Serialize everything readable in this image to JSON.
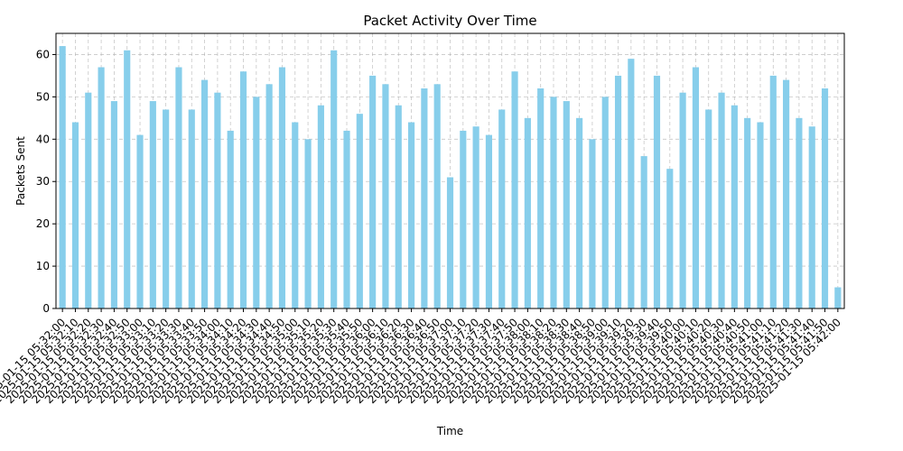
{
  "chart_data": {
    "type": "bar",
    "title": "Packet Activity Over Time",
    "xlabel": "Time",
    "ylabel": "Packets Sent",
    "ylim": [
      0,
      65
    ],
    "yticks": [
      0,
      10,
      20,
      30,
      40,
      50,
      60
    ],
    "grid": true,
    "bar_color": "#87ceeb",
    "categories": [
      "2025-01-15 05:32:00",
      "2025-01-15 05:32:10",
      "2025-01-15 05:32:20",
      "2025-01-15 05:32:30",
      "2025-01-15 05:32:40",
      "2025-01-15 05:32:50",
      "2025-01-15 05:33:00",
      "2025-01-15 05:33:10",
      "2025-01-15 05:33:20",
      "2025-01-15 05:33:30",
      "2025-01-15 05:33:40",
      "2025-01-15 05:33:50",
      "2025-01-15 05:34:00",
      "2025-01-15 05:34:10",
      "2025-01-15 05:34:20",
      "2025-01-15 05:34:30",
      "2025-01-15 05:34:40",
      "2025-01-15 05:34:50",
      "2025-01-15 05:35:00",
      "2025-01-15 05:35:10",
      "2025-01-15 05:35:20",
      "2025-01-15 05:35:30",
      "2025-01-15 05:35:40",
      "2025-01-15 05:35:50",
      "2025-01-15 05:36:00",
      "2025-01-15 05:36:10",
      "2025-01-15 05:36:20",
      "2025-01-15 05:36:30",
      "2025-01-15 05:36:40",
      "2025-01-15 05:36:50",
      "2025-01-15 05:37:00",
      "2025-01-15 05:37:10",
      "2025-01-15 05:37:20",
      "2025-01-15 05:37:30",
      "2025-01-15 05:37:40",
      "2025-01-15 05:37:50",
      "2025-01-15 05:38:00",
      "2025-01-15 05:38:10",
      "2025-01-15 05:38:20",
      "2025-01-15 05:38:30",
      "2025-01-15 05:38:40",
      "2025-01-15 05:38:50",
      "2025-01-15 05:39:00",
      "2025-01-15 05:39:10",
      "2025-01-15 05:39:20",
      "2025-01-15 05:39:30",
      "2025-01-15 05:39:40",
      "2025-01-15 05:39:50",
      "2025-01-15 05:40:00",
      "2025-01-15 05:40:10",
      "2025-01-15 05:40:20",
      "2025-01-15 05:40:30",
      "2025-01-15 05:40:40",
      "2025-01-15 05:40:50",
      "2025-01-15 05:41:00",
      "2025-01-15 05:41:10",
      "2025-01-15 05:41:20",
      "2025-01-15 05:41:30",
      "2025-01-15 05:41:40",
      "2025-01-15 05:41:50",
      "2025-01-15 05:42:00"
    ],
    "values": [
      62,
      44,
      51,
      57,
      49,
      61,
      41,
      49,
      47,
      57,
      47,
      54,
      51,
      42,
      56,
      50,
      53,
      57,
      44,
      40,
      48,
      61,
      42,
      46,
      55,
      53,
      48,
      44,
      52,
      53,
      31,
      42,
      43,
      41,
      47,
      56,
      45,
      52,
      50,
      49,
      45,
      40,
      50,
      55,
      59,
      36,
      55,
      33,
      51,
      57,
      47,
      51,
      48,
      45,
      44,
      55,
      54,
      45,
      43,
      52,
      5
    ]
  }
}
